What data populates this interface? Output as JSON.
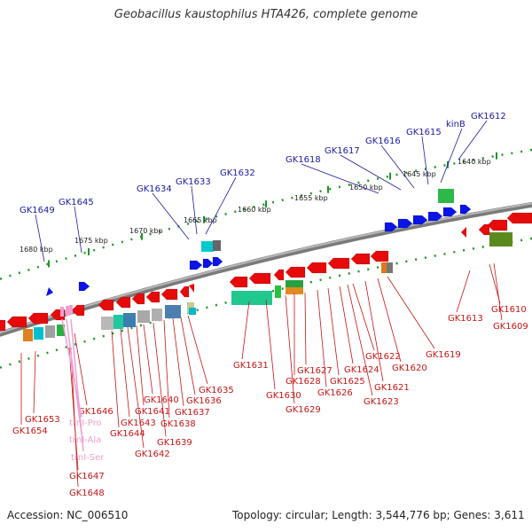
{
  "title": "Geobacillus kaustophilus HTA426, complete genome",
  "accession_text": "Accession: NC_006510",
  "summary_text": "Topology: circular; Length: 3,544,776 bp; Genes: 3,611",
  "kbp_ticks": [
    "1640 kbp",
    "1645 kbp",
    "1650 kbp",
    "1655 kbp",
    "1660 kbp",
    "1665 kbp",
    "1670 kbp",
    "1675 kbp",
    "1680 kbp"
  ],
  "top_strand_labels": [
    "GK1612",
    "kinB",
    "GK1615",
    "GK1616",
    "GK1617",
    "GK1618",
    "GK1632",
    "GK1633",
    "GK1634",
    "GK1645",
    "GK1649"
  ],
  "bottom_strand_labels": [
    "GK1609",
    "GK1610",
    "GK1613",
    "GK1619",
    "GK1620",
    "GK1621",
    "GK1622",
    "GK1623",
    "GK1624",
    "GK1625",
    "GK1626",
    "GK1627",
    "GK1628",
    "GK1629",
    "GK1630",
    "GK1631",
    "GK1635",
    "GK1636",
    "GK1637",
    "GK1638",
    "GK1639",
    "GK1640",
    "GK1641",
    "GK1642",
    "GK1643",
    "GK1644",
    "GK1646",
    "GK1647",
    "GK1648",
    "GK1653",
    "GK1654"
  ],
  "trna_labels": [
    "trnI-Pro",
    "trnI-Ala",
    "trnI-Ser"
  ],
  "colors": {
    "forward_gene": "#0a14e6",
    "reverse_gene": "#e60a0a",
    "trna": "#f0a0d0",
    "backbone": "#7a7a7a",
    "tick_dots": "#22962a",
    "top_label": "#1a1aa0",
    "bottom_label": "#c81414"
  }
}
